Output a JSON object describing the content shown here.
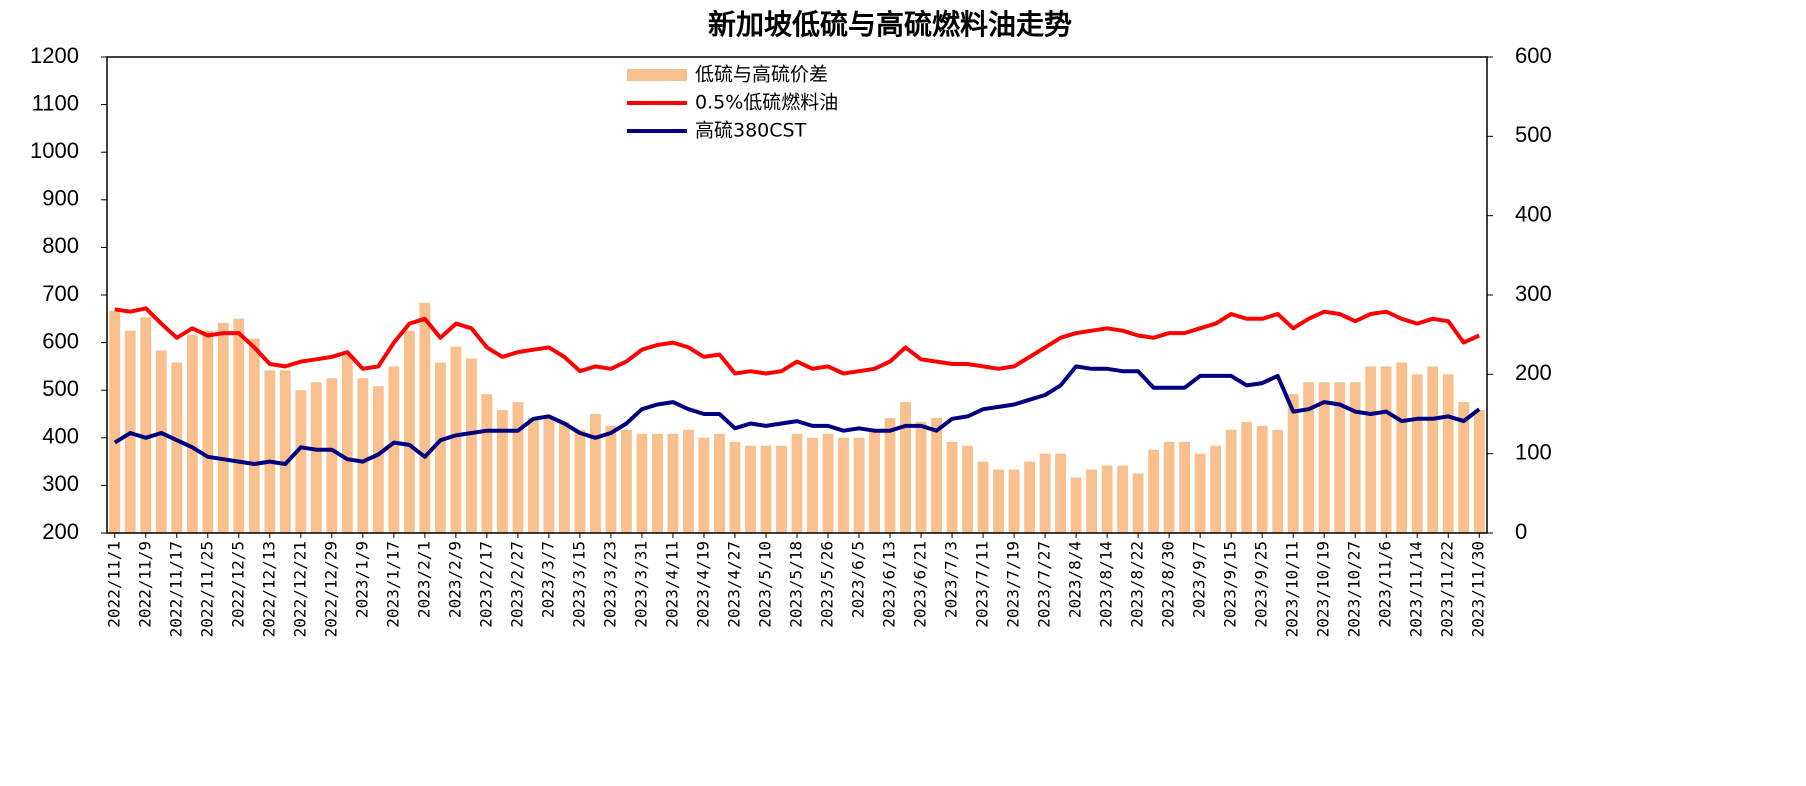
{
  "chart_data": {
    "type": "bar-line",
    "title": "新加坡低硫与高硫燃料油走势",
    "categories": [
      "2022/11/1",
      null,
      "2022/11/9",
      null,
      "2022/11/17",
      null,
      "2022/11/25",
      null,
      "2022/12/5",
      null,
      "2022/12/13",
      null,
      "2022/12/21",
      null,
      "2022/12/29",
      null,
      "2023/1/9",
      null,
      "2023/1/17",
      null,
      "2023/2/1",
      null,
      "2023/2/9",
      null,
      "2023/2/17",
      null,
      "2023/2/27",
      null,
      "2023/3/7",
      null,
      "2023/3/15",
      null,
      "2023/3/23",
      null,
      "2023/3/31",
      null,
      "2023/4/11",
      null,
      "2023/4/19",
      null,
      "2023/4/27",
      null,
      "2023/5/10",
      null,
      "2023/5/18",
      null,
      "2023/5/26",
      null,
      "2023/6/5",
      null,
      "2023/6/13",
      null,
      "2023/6/21",
      null,
      "2023/7/3",
      null,
      "2023/7/11",
      null,
      "2023/7/19",
      null,
      "2023/7/27",
      null,
      "2023/8/4",
      null,
      "2023/8/14",
      null,
      "2023/8/22",
      null,
      "2023/8/30",
      null,
      "2023/9/7",
      null,
      "2023/9/15",
      null,
      "2023/9/25",
      null,
      "2023/10/11",
      null,
      "2023/10/19",
      null,
      "2023/10/27",
      null,
      "2023/11/6",
      null,
      "2023/11/14",
      null,
      "2023/11/22",
      null,
      "2023/11/30"
    ],
    "series": [
      {
        "name": "低硫与高硫价差",
        "kind": "bar",
        "axis": "y2",
        "color": "#f9c08f",
        "values": [
          280,
          255,
          272,
          230,
          215,
          250,
          255,
          265,
          270,
          245,
          205,
          205,
          180,
          190,
          195,
          225,
          195,
          185,
          210,
          255,
          290,
          215,
          235,
          220,
          175,
          155,
          165,
          145,
          145,
          140,
          130,
          150,
          135,
          130,
          125,
          125,
          125,
          130,
          120,
          125,
          115,
          110,
          110,
          110,
          125,
          120,
          125,
          120,
          120,
          130,
          145,
          165,
          140,
          145,
          115,
          110,
          90,
          80,
          80,
          90,
          100,
          100,
          70,
          80,
          85,
          85,
          75,
          105,
          115,
          115,
          100,
          110,
          130,
          140,
          135,
          130,
          175,
          190,
          190,
          190,
          190,
          210,
          210,
          215,
          200,
          210,
          200,
          165,
          155
        ]
      },
      {
        "name": "0.5%低硫燃料油",
        "kind": "line",
        "color": "#ff0000",
        "values": [
          670,
          665,
          672,
          640,
          610,
          630,
          615,
          620,
          620,
          590,
          555,
          550,
          560,
          565,
          570,
          580,
          545,
          550,
          600,
          640,
          650,
          610,
          640,
          630,
          590,
          570,
          580,
          585,
          590,
          570,
          540,
          550,
          545,
          560,
          585,
          595,
          600,
          590,
          570,
          575,
          535,
          540,
          535,
          540,
          560,
          545,
          550,
          535,
          540,
          545,
          560,
          590,
          565,
          560,
          555,
          555,
          550,
          545,
          550,
          570,
          590,
          610,
          620,
          625,
          630,
          625,
          615,
          610,
          620,
          620,
          630,
          640,
          660,
          650,
          650,
          660,
          630,
          650,
          665,
          660,
          645,
          660,
          665,
          650,
          640,
          650,
          645,
          600,
          615
        ]
      },
      {
        "name": "高硫380CST",
        "kind": "line",
        "color": "#000080",
        "values": [
          390,
          410,
          400,
          410,
          395,
          380,
          360,
          355,
          350,
          345,
          350,
          345,
          380,
          375,
          375,
          355,
          350,
          365,
          390,
          385,
          360,
          395,
          405,
          410,
          415,
          415,
          415,
          440,
          445,
          430,
          410,
          400,
          410,
          430,
          460,
          470,
          475,
          460,
          450,
          450,
          420,
          430,
          425,
          430,
          435,
          425,
          425,
          415,
          420,
          415,
          415,
          425,
          425,
          415,
          440,
          445,
          460,
          465,
          470,
          480,
          490,
          510,
          550,
          545,
          545,
          540,
          540,
          505,
          505,
          505,
          530,
          530,
          530,
          510,
          515,
          530,
          455,
          460,
          475,
          470,
          455,
          450,
          455,
          435,
          440,
          440,
          445,
          435,
          460
        ]
      }
    ],
    "ylim": [
      200,
      1200
    ],
    "yticks": [
      200,
      300,
      400,
      500,
      600,
      700,
      800,
      900,
      1000,
      1100,
      1200
    ],
    "y2lim": [
      0,
      600
    ],
    "y2ticks": [
      0,
      100,
      200,
      300,
      400,
      500,
      600
    ],
    "legend": "upper center"
  }
}
